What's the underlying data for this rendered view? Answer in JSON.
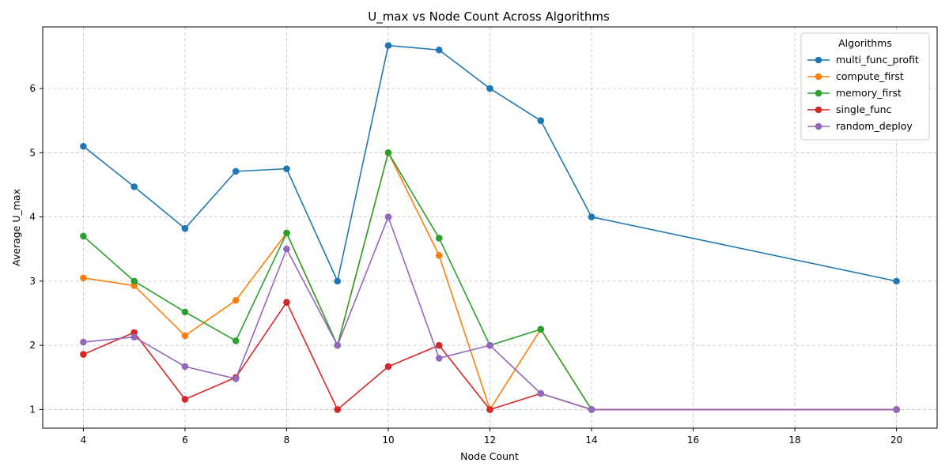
{
  "chart_data": {
    "type": "line",
    "title": "U_max vs Node Count Across Algorithms",
    "xlabel": "Node Count",
    "ylabel": "Average U_max",
    "xlim": [
      3.2,
      20.8
    ],
    "ylim": [
      0.71,
      6.96
    ],
    "xticks": [
      4,
      6,
      8,
      10,
      12,
      14,
      16,
      18,
      20
    ],
    "yticks": [
      1,
      2,
      3,
      4,
      5,
      6
    ],
    "grid": true,
    "legend": {
      "title": "Algorithms",
      "placement": "top-right"
    },
    "series": [
      {
        "name": "multi_func_profit",
        "color": "#1f77b4",
        "points": [
          [
            4,
            5.1
          ],
          [
            5,
            4.47
          ],
          [
            6,
            3.82
          ],
          [
            7,
            4.71
          ],
          [
            8,
            4.75
          ],
          [
            9,
            3.0
          ],
          [
            10,
            6.67
          ],
          [
            11,
            6.6
          ],
          [
            12,
            6.0
          ],
          [
            13,
            5.5
          ],
          [
            14,
            4.0
          ],
          [
            20,
            3.0
          ]
        ]
      },
      {
        "name": "compute_first",
        "color": "#ff7f0e",
        "points": [
          [
            4,
            3.05
          ],
          [
            5,
            2.93
          ],
          [
            6,
            2.15
          ],
          [
            7,
            2.7
          ],
          [
            8,
            3.75
          ],
          [
            9,
            2.0
          ],
          [
            10,
            5.0
          ],
          [
            11,
            3.4
          ],
          [
            12,
            1.0
          ],
          [
            13,
            2.25
          ],
          [
            14,
            1.0
          ],
          [
            20,
            1.0
          ]
        ]
      },
      {
        "name": "memory_first",
        "color": "#2ca02c",
        "points": [
          [
            4,
            3.7
          ],
          [
            5,
            3.0
          ],
          [
            6,
            2.52
          ],
          [
            7,
            2.07
          ],
          [
            8,
            3.75
          ],
          [
            9,
            2.0
          ],
          [
            10,
            5.0
          ],
          [
            11,
            3.67
          ],
          [
            12,
            2.0
          ],
          [
            13,
            2.25
          ],
          [
            14,
            1.0
          ],
          [
            20,
            1.0
          ]
        ]
      },
      {
        "name": "single_func",
        "color": "#d62728",
        "points": [
          [
            4,
            1.86
          ],
          [
            5,
            2.2
          ],
          [
            6,
            1.16
          ],
          [
            7,
            1.5
          ],
          [
            8,
            2.67
          ],
          [
            9,
            1.0
          ],
          [
            10,
            1.67
          ],
          [
            11,
            2.0
          ],
          [
            12,
            1.0
          ],
          [
            13,
            1.25
          ],
          [
            14,
            1.0
          ],
          [
            20,
            1.0
          ]
        ]
      },
      {
        "name": "random_deploy",
        "color": "#9467bd",
        "points": [
          [
            4,
            2.05
          ],
          [
            5,
            2.13
          ],
          [
            6,
            1.67
          ],
          [
            7,
            1.48
          ],
          [
            8,
            3.5
          ],
          [
            9,
            2.0
          ],
          [
            10,
            4.0
          ],
          [
            11,
            1.8
          ],
          [
            12,
            2.0
          ],
          [
            13,
            1.25
          ],
          [
            14,
            1.0
          ],
          [
            20,
            1.0
          ]
        ]
      }
    ]
  }
}
